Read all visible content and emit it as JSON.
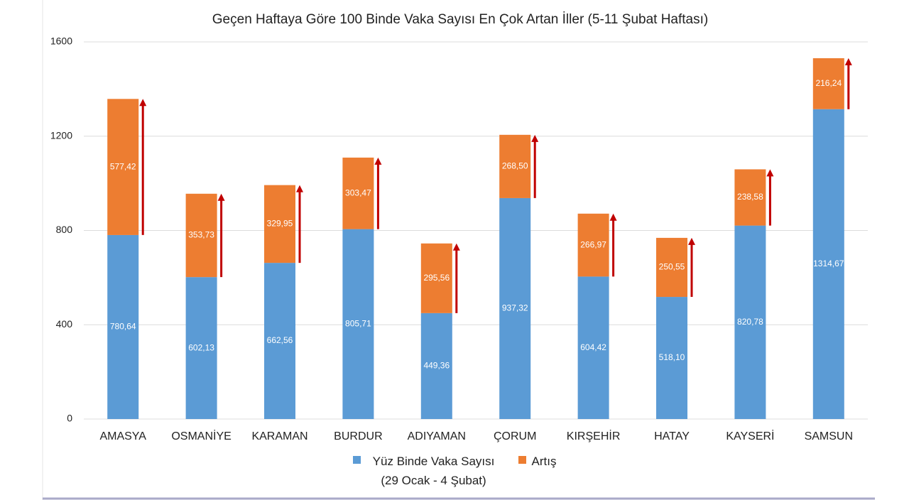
{
  "chart_data": {
    "type": "stacked-bar",
    "title": "Geçen Haftaya Göre 100 Binde Vaka Sayısı En Çok Artan İller (5-11 Şubat Haftası)",
    "categories": [
      "AMASYA",
      "OSMANİYE",
      "KARAMAN",
      "BURDUR",
      "ADIYAMAN",
      "ÇORUM",
      "KIRŞEHİR",
      "HATAY",
      "KAYSERİ",
      "SAMSUN"
    ],
    "series": [
      {
        "name": "Yüz Binde Vaka Sayısı (29 Ocak - 4 Şubat)",
        "color": "#5b9bd5",
        "values": [
          780.64,
          602.13,
          662.56,
          805.71,
          449.36,
          937.32,
          604.42,
          518.1,
          820.78,
          1314.67
        ],
        "value_labels": [
          "780,64",
          "602,13",
          "662,56",
          "805,71",
          "449,36",
          "937,32",
          "604,42",
          "518,10",
          "820,78",
          "1314,67"
        ]
      },
      {
        "name": "Artış",
        "color": "#ed7d31",
        "values": [
          577.42,
          353.73,
          329.95,
          303.47,
          295.56,
          268.5,
          266.97,
          250.55,
          238.58,
          216.24
        ],
        "value_labels": [
          "577,42",
          "353,73",
          "329,95",
          "303,47",
          "295,56",
          "268,50",
          "266,97",
          "250,55",
          "238,58",
          "216,24"
        ]
      }
    ],
    "ylim": [
      0,
      1600
    ],
    "yticks": [
      0,
      400,
      800,
      1200,
      1600
    ],
    "grid": true
  }
}
